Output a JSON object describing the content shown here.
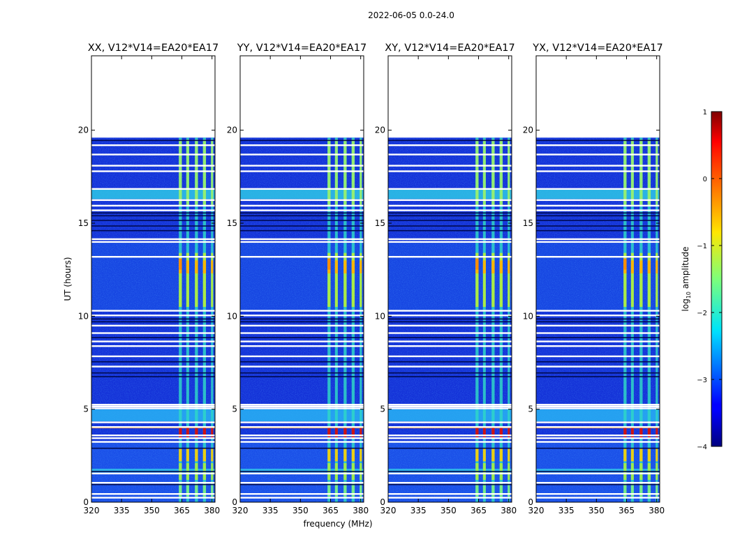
{
  "suptitle": "2022-06-05 0.0-24.0",
  "chart_data": {
    "type": "heatmap",
    "panels": [
      {
        "title": "XX, V12*V14=EA20*EA17"
      },
      {
        "title": "YY, V12*V14=EA20*EA17"
      },
      {
        "title": "XY, V12*V14=EA20*EA17"
      },
      {
        "title": "YX, V12*V14=EA20*EA17"
      }
    ],
    "xlabel": "frequency (MHz)",
    "ylabel": "UT (hours)",
    "xlim": [
      320,
      381.5
    ],
    "ylim": [
      0,
      24
    ],
    "xticks": [
      320,
      335,
      350,
      365,
      380
    ],
    "yticks": [
      0,
      5,
      10,
      15,
      20
    ],
    "data_extent_hours": [
      0,
      19.6
    ],
    "rfi_bands_mhz": [
      [
        363.5,
        365
      ],
      [
        367.2,
        368.6
      ],
      [
        371.5,
        373
      ],
      [
        375.5,
        377
      ],
      [
        379.5,
        380.6
      ]
    ],
    "colorbar": {
      "label": "log10 amplitude",
      "label_main": "log",
      "label_sub": "10",
      "label_rest": " amplitude",
      "range": [
        -4,
        1
      ],
      "ticks": [
        1,
        0,
        -1,
        -2,
        -3,
        -4
      ],
      "tick_labels": [
        "1",
        "0",
        "−1",
        "−2",
        "−3",
        "−4"
      ],
      "colormap": "jet"
    }
  }
}
